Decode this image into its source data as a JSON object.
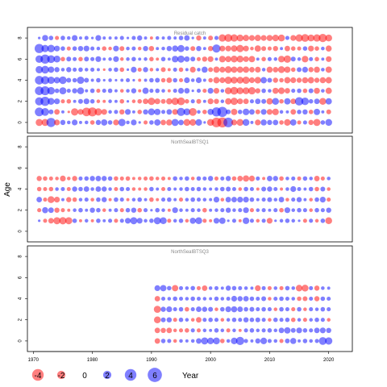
{
  "chart_data": {
    "type": "scatter",
    "subtype": "bubble-residuals",
    "ylabel": "Age",
    "xlabel": "Year",
    "xlim": [
      1969,
      2024
    ],
    "x_ticks": [
      1970,
      1980,
      1990,
      2000,
      2010,
      2020
    ],
    "colors": {
      "positive": "#0000ff",
      "negative": "#ff0000",
      "alpha": 0.5
    },
    "legend": {
      "placement": "bottom-left",
      "entries": [
        {
          "label": "-4",
          "value": -4
        },
        {
          "label": "-2",
          "value": -2
        },
        {
          "label": "0",
          "value": 0
        },
        {
          "label": "2",
          "value": 2
        },
        {
          "label": "4",
          "value": 4
        },
        {
          "label": "6",
          "value": 6
        }
      ]
    },
    "panels": [
      {
        "name": "Residual catch",
        "years": [
          1971,
          2020
        ],
        "ages": [
          0,
          1,
          2,
          3,
          4,
          5,
          6,
          7,
          8
        ],
        "y_ticks": [
          0,
          2,
          4,
          6,
          8
        ],
        "ylim": [
          -1,
          9
        ],
        "residuals": [
          [
            -1.5,
            -1.5,
            2.5,
            -1.0,
            0.8,
            0.4,
            1.0,
            0.3,
            0.4,
            -0.6,
            0.8,
            1.2,
            0.6,
            -1.0,
            1.6,
            0.4,
            1.0,
            0.2,
            -0.5,
            0.6,
            1.2,
            -0.9,
            -1.1,
            1.5,
            0.9,
            -1.4,
            -1.3,
            1.3,
            0.2,
            -1.4,
            -2.8,
            -3.0,
            2.8,
            -1.0,
            -1.4,
            1.4,
            0.3,
            -1.0,
            1.1,
            0.8,
            0.9,
            -0.6,
            -1.3,
            1.2,
            -0.5,
            0.5,
            -0.8,
            -1.5,
            0.6,
            1.4
          ],
          [
            2.3,
            1.8,
            0.7,
            -0.9,
            0.3,
            -0.2,
            -1.6,
            -1.0,
            -2.2,
            -2.4,
            -1.6,
            -1.0,
            0.4,
            0.5,
            -0.8,
            1.0,
            0.3,
            -0.6,
            0.8,
            1.4,
            1.2,
            0.5,
            0.9,
            -1.0,
            2.0,
            1.4,
            -1.8,
            0.4,
            -0.6,
            1.1,
            2.5,
            3.0,
            0.7,
            -1.2,
            0.6,
            1.3,
            0.9,
            -0.7,
            1.0,
            -1.0,
            -1.3,
            0.4,
            0.3,
            -0.9,
            0.6,
            0.8,
            -0.6,
            1.2,
            0.3,
            -0.7
          ],
          [
            2.0,
            2.5,
            1.4,
            1.0,
            -0.5,
            -0.6,
            0.3,
            0.7,
            1.0,
            0.6,
            -0.4,
            -0.3,
            0.4,
            0.3,
            -0.6,
            0.2,
            -0.4,
            -0.6,
            -0.9,
            -1.6,
            -1.0,
            -0.7,
            -1.1,
            -1.6,
            -1.8,
            -0.6,
            0.5,
            -0.7,
            0.3,
            -1.0,
            -0.8,
            0.4,
            -1.2,
            -1.6,
            -1.0,
            -0.9,
            0.5,
            0.9,
            0.7,
            -1.2,
            1.4,
            -0.6,
            1.2,
            -0.9,
            2.1,
            1.7,
            0.6,
            0.9,
            -1.4,
            1.2
          ],
          [
            2.2,
            2.4,
            1.7,
            0.6,
            1.5,
            0.5,
            0.8,
            1.4,
            0.3,
            0.6,
            -0.5,
            0.5,
            0.6,
            0.3,
            -0.4,
            0.4,
            0.8,
            -0.3,
            1.2,
            0.5,
            0.6,
            0.4,
            -0.3,
            0.5,
            1.0,
            0.9,
            0.2,
            0.5,
            -0.5,
            1.0,
            -1.0,
            0.4,
            -1.4,
            -1.8,
            -1.4,
            -1.4,
            -1.6,
            -0.8,
            0.6,
            0.4,
            -1.1,
            -1.3,
            -0.9,
            0.5,
            0.6,
            -0.6,
            0.7,
            -1.1,
            0.4,
            -1.2
          ],
          [
            2.2,
            2.0,
            1.6,
            1.2,
            1.7,
            0.7,
            0.6,
            1.6,
            0.7,
            0.3,
            0.6,
            0.2,
            0.4,
            0.2,
            0.3,
            0.5,
            0.2,
            -0.3,
            0.3,
            0.6,
            0.7,
            -0.6,
            -0.9,
            0.6,
            -0.5,
            1.0,
            0.4,
            1.0,
            0.3,
            -0.6,
            -1.2,
            -1.0,
            -1.6,
            -1.4,
            -1.4,
            -1.6,
            -1.0,
            -1.3,
            1.2,
            0.7,
            -0.8,
            -0.6,
            -1.2,
            -1.0,
            -0.8,
            -1.1,
            -1.2,
            -0.8,
            -1.1,
            -1.2
          ],
          [
            1.6,
            1.8,
            1.2,
            0.8,
            0.4,
            0.8,
            0.5,
            0.6,
            0.4,
            0.5,
            0.3,
            -0.2,
            0.4,
            0.6,
            -0.6,
            0.2,
            1.0,
            -0.5,
            0.8,
            -0.4,
            0.3,
            -0.7,
            -0.3,
            0.5,
            -0.6,
            0.3,
            -1.0,
            0.4,
            1.1,
            -0.7,
            -1.2,
            -1.0,
            -1.4,
            -1.2,
            -1.2,
            -1.2,
            -0.9,
            -1.0,
            0.4,
            -1.1,
            -0.9,
            -1.4,
            -1.2,
            -0.6,
            0.7,
            1.0,
            -0.8,
            -1.1,
            0.4,
            -1.2
          ],
          [
            1.7,
            2.5,
            1.8,
            1.4,
            -0.6,
            0.7,
            0.5,
            -0.6,
            0.7,
            0.5,
            1.0,
            0.3,
            0.4,
            1.0,
            -0.4,
            0.4,
            0.6,
            0.3,
            0.4,
            -0.6,
            -0.3,
            0.6,
            0.3,
            1.3,
            1.5,
            0.9,
            0.7,
            -0.5,
            -0.8,
            -1.0,
            0.3,
            -1.3,
            -1.1,
            -1.4,
            -1.4,
            -1.0,
            -1.2,
            0.3,
            -0.6,
            0.5,
            0.4,
            -1.3,
            -1.6,
            0.7,
            0.4,
            -1.3,
            0.5,
            -0.6,
            0.3,
            -1.0
          ],
          [
            2.5,
            1.6,
            1.7,
            1.0,
            0.6,
            -0.5,
            0.6,
            0.8,
            1.0,
            0.5,
            0.4,
            -0.6,
            -0.4,
            1.0,
            -0.7,
            0.4,
            0.5,
            -0.4,
            0.8,
            -0.8,
            0.3,
            0.4,
            0.8,
            1.1,
            1.5,
            0.6,
            -0.7,
            0.8,
            0.3,
            -0.8,
            2.0,
            -1.0,
            -1.0,
            -1.2,
            -1.6,
            -1.0,
            -0.4,
            -1.2,
            -0.7,
            -0.5,
            -0.8,
            0.3,
            -0.9,
            -0.6,
            -0.5,
            0.6,
            -1.0,
            -0.6,
            0.4,
            -1.1
          ],
          [
            0.2,
            1.1,
            0.6,
            -0.5,
            0.6,
            0.4,
            1.0,
            0.3,
            0.5,
            0.2,
            1.0,
            0.3,
            0.3,
            0.3,
            0.5,
            0.2,
            0.5,
            0.8,
            0.3,
            -0.3,
            0.4,
            0.3,
            0.5,
            0.3,
            0.6,
            0.9,
            0.2,
            -0.8,
            0.3,
            -0.7,
            0.5,
            -1.6,
            -1.8,
            -1.6,
            -1.4,
            -1.2,
            -1.0,
            -1.2,
            -1.0,
            -1.1,
            -1.3,
            -1.4,
            0.5,
            -1.0,
            -1.6,
            -1.8,
            -1.4,
            -1.6,
            -2.0,
            -1.4
          ]
        ]
      },
      {
        "name": "NorthSeaIBTSQ1",
        "years": [
          1971,
          2020
        ],
        "ages": [
          1,
          2,
          3,
          4,
          5
        ],
        "y_ticks": [
          0,
          2,
          4,
          6,
          8
        ],
        "ylim": [
          -1,
          9
        ],
        "residuals": [
          [
            0.2,
            -0.5,
            -0.9,
            -1.5,
            -1.6,
            -1.5,
            0.6,
            -0.3,
            0.4,
            -0.3,
            0.6,
            0.3,
            0.5,
            -0.5,
            0.5,
            1.0,
            1.5,
            1.0,
            0.4,
            0.6,
            1.5,
            1.4,
            -0.5,
            0.4,
            0.6,
            -0.4,
            1.1,
            1.4,
            -0.5,
            -0.3,
            1.0,
            1.2,
            0.2,
            0.5,
            -0.3,
            1.3,
            0.5,
            -0.4,
            0.5,
            -1.0,
            0.2,
            0.4,
            0.6,
            0.4,
            0.2,
            -0.5,
            0.5,
            -0.4,
            0.6,
            -1.4
          ],
          [
            -0.5,
            1.1,
            0.9,
            -0.8,
            -0.5,
            -0.3,
            0.4,
            0.6,
            0.3,
            0.8,
            0.6,
            -0.4,
            0.3,
            0.5,
            -0.5,
            0.6,
            0.8,
            -0.6,
            0.5,
            0.2,
            0.6,
            0.4,
            -0.3,
            1.0,
            0.4,
            0.3,
            0.5,
            0.4,
            -0.6,
            0.3,
            0.4,
            0.5,
            0.8,
            0.4,
            0.5,
            1.0,
            -0.5,
            0.4,
            0.5,
            0.3,
            0.5,
            -0.6,
            1.0,
            0.4,
            0.6,
            0.5,
            -0.4,
            0.6,
            0.5,
            0.8
          ],
          [
            0.9,
            -0.5,
            -1.4,
            -1.0,
            0.3,
            -0.8,
            -0.6,
            0.4,
            0.5,
            -0.4,
            0.6,
            0.8,
            -0.3,
            0.6,
            0.5,
            -0.3,
            0.4,
            0.6,
            0.3,
            -0.6,
            -0.3,
            0.5,
            0.6,
            0.3,
            -0.5,
            0.4,
            0.6,
            0.5,
            0.4,
            0.3,
            1.0,
            -0.4,
            0.9,
            0.9,
            1.0,
            1.0,
            0.6,
            0.3,
            0.5,
            0.7,
            0.4,
            0.9,
            -0.4,
            0.5,
            0.8,
            0.3,
            -0.4,
            0.6,
            1.0,
            -0.5
          ],
          [
            -0.6,
            -0.5,
            -0.6,
            0.4,
            0.5,
            -0.5,
            0.8,
            0.6,
            0.9,
            0.4,
            0.9,
            0.8,
            0.4,
            -0.5,
            0.6,
            0.5,
            -0.4,
            -0.3,
            -0.4,
            0.6,
            0.3,
            -0.5,
            0.5,
            0.3,
            0.4,
            0.6,
            0.5,
            0.6,
            0.4,
            0.3,
            0.4,
            0.6,
            0.7,
            0.5,
            -0.4,
            0.6,
            0.5,
            -0.3,
            0.7,
            0.8,
            0.5,
            -0.3,
            0.4,
            1.0,
            0.5,
            0.3,
            0.6,
            -0.6,
            0.7,
            -0.4
          ],
          [
            -0.8,
            -0.6,
            -0.5,
            -0.4,
            -1.0,
            -0.4,
            -0.8,
            0.5,
            0.6,
            0.8,
            0.9,
            0.8,
            0.6,
            -0.6,
            -0.5,
            -0.6,
            -0.3,
            -0.4,
            -0.5,
            -0.6,
            -0.4,
            -0.5,
            -0.3,
            0.6,
            0.4,
            0.6,
            -0.4,
            0.6,
            0.5,
            0.8,
            -0.5,
            0.5,
            0.8,
            -0.6,
            -0.9,
            -1.2,
            -1.0,
            0.5,
            -0.3,
            0.9,
            0.8,
            -0.6,
            0.4,
            0.5,
            -0.5,
            0.6,
            0.4,
            -0.9,
            -0.5,
            0.4
          ]
        ]
      },
      {
        "name": "NorthSeaIBTSQ3",
        "years": [
          1991,
          2020
        ],
        "ages": [
          0,
          1,
          2,
          3,
          4,
          5
        ],
        "y_ticks": [
          0,
          2,
          4,
          6,
          8
        ],
        "ylim": [
          -1,
          9
        ],
        "residuals": [
          [
            -0.9,
            0.6,
            0.5,
            -0.4,
            0.4,
            0.3,
            0.4,
            0.9,
            1.5,
            1.3,
            1.4,
            -0.6,
            0.4,
            1.3,
            2.0,
            0.5,
            0.3,
            0.8,
            1.3,
            0.5,
            0.4,
            -0.5,
            0.7,
            1.1,
            0.3,
            0.6,
            0.4,
            0.5,
            1.8,
            1.6
          ],
          [
            -0.9,
            -0.8,
            -0.9,
            -0.4,
            -0.5,
            -0.6,
            0.5,
            -0.5,
            0.4,
            0.3,
            0.6,
            0.4,
            -0.5,
            0.4,
            -0.3,
            0.5,
            0.6,
            0.4,
            0.5,
            0.6,
            0.4,
            0.9,
            1.2,
            0.7,
            1.0,
            0.6,
            0.5,
            0.9,
            1.0,
            0.8
          ],
          [
            -1.4,
            0.7,
            0.8,
            -0.5,
            0.6,
            0.4,
            -0.4,
            -0.9,
            0.5,
            0.6,
            0.5,
            -0.4,
            0.4,
            0.6,
            0.5,
            0.8,
            0.6,
            0.7,
            0.5,
            -0.4,
            0.6,
            0.5,
            0.6,
            -0.6,
            0.4,
            -0.5,
            0.4,
            0.6,
            0.5,
            -0.4
          ],
          [
            -1.5,
            0.8,
            1.0,
            0.5,
            0.6,
            -0.6,
            0.5,
            0.9,
            0.8,
            0.7,
            -0.4,
            0.6,
            1.0,
            1.1,
            0.9,
            0.6,
            0.7,
            0.5,
            0.6,
            0.5,
            -0.4,
            0.6,
            0.5,
            -0.5,
            0.6,
            -0.4,
            0.5,
            0.4,
            0.6,
            0.5
          ],
          [
            -0.9,
            0.5,
            0.4,
            0.6,
            0.5,
            0.4,
            0.6,
            0.5,
            0.4,
            0.3,
            0.6,
            0.4,
            0.5,
            1.0,
            0.8,
            0.9,
            0.6,
            0.5,
            0.7,
            -0.4,
            0.5,
            0.6,
            0.5,
            0.4,
            -0.6,
            -0.7,
            0.5,
            -0.8,
            0.6,
            0.5
          ],
          [
            1.0,
            1.2,
            0.6,
            -1.2,
            0.5,
            0.4,
            0.6,
            -0.5,
            -0.9,
            0.4,
            0.5,
            0.3,
            0.8,
            0.6,
            0.5,
            0.4,
            0.3,
            -1.0,
            0.5,
            -0.5,
            0.4,
            -0.5,
            0.6,
            0.4,
            -1.3,
            -1.4,
            0.5,
            -0.8,
            0.4,
            0.3
          ]
        ]
      }
    ]
  }
}
